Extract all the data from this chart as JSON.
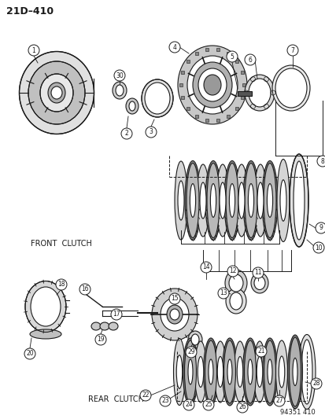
{
  "title_text": "21D–410",
  "footer_text": "94351 410",
  "front_clutch_label": "FRONT  CLUTCH",
  "rear_clutch_label": "REAR  CLUTCH",
  "bg_color": "#ffffff",
  "line_color": "#1a1a1a",
  "figsize": [
    4.14,
    5.33
  ],
  "dpi": 100
}
